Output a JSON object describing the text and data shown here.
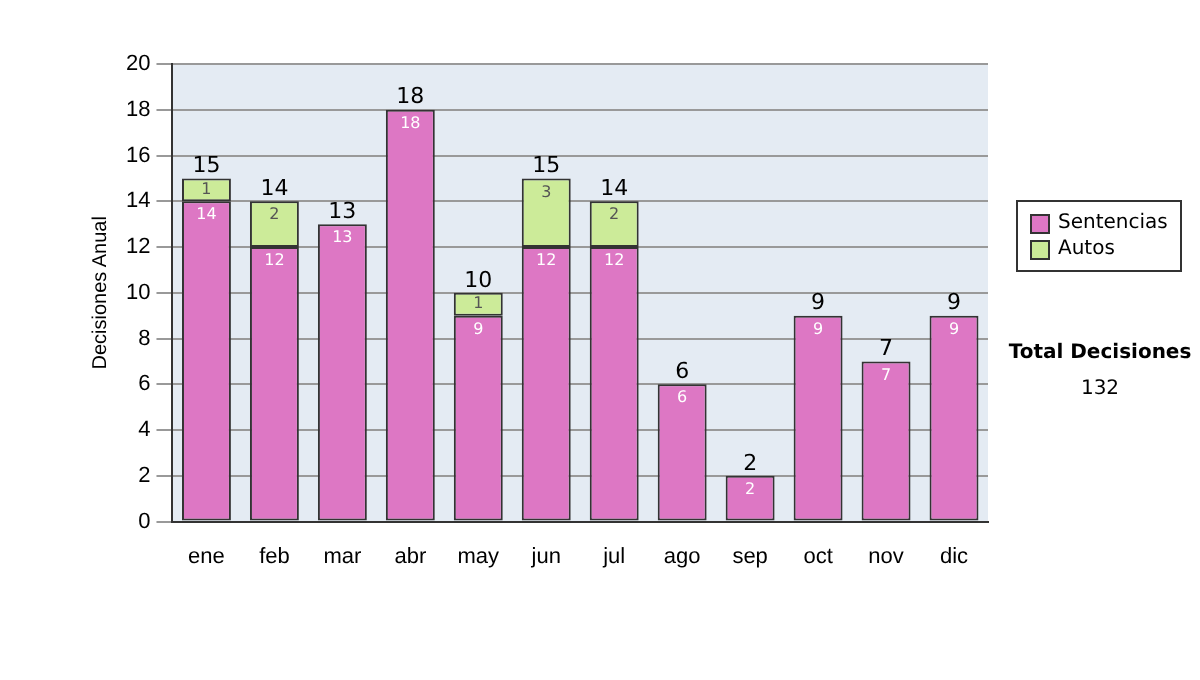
{
  "chart_data": {
    "type": "bar",
    "stacked": true,
    "ylabel": "Decisiones Anual",
    "categories": [
      "ene",
      "feb",
      "mar",
      "abr",
      "may",
      "jun",
      "jul",
      "ago",
      "sep",
      "oct",
      "nov",
      "dic"
    ],
    "series": [
      {
        "name": "Sentencias",
        "color": "#dd77c4",
        "values": [
          14,
          12,
          13,
          18,
          9,
          12,
          12,
          6,
          2,
          9,
          7,
          9
        ]
      },
      {
        "name": "Autos",
        "color": "#cceb99",
        "values": [
          1,
          2,
          null,
          null,
          1,
          3,
          2,
          null,
          null,
          null,
          null,
          null
        ]
      }
    ],
    "totals": [
      "15",
      "14",
      "13",
      "18",
      "10",
      "15",
      "14",
      "6",
      "2",
      "9",
      "7",
      "9"
    ],
    "data_labels": true,
    "ylim": [
      0,
      20
    ],
    "yticks": [
      0,
      2,
      4,
      6,
      8,
      10,
      12,
      14,
      16,
      18,
      20
    ],
    "grid": "y",
    "legend": "right",
    "annotations": [
      "Total Decisiones",
      "132"
    ]
  }
}
